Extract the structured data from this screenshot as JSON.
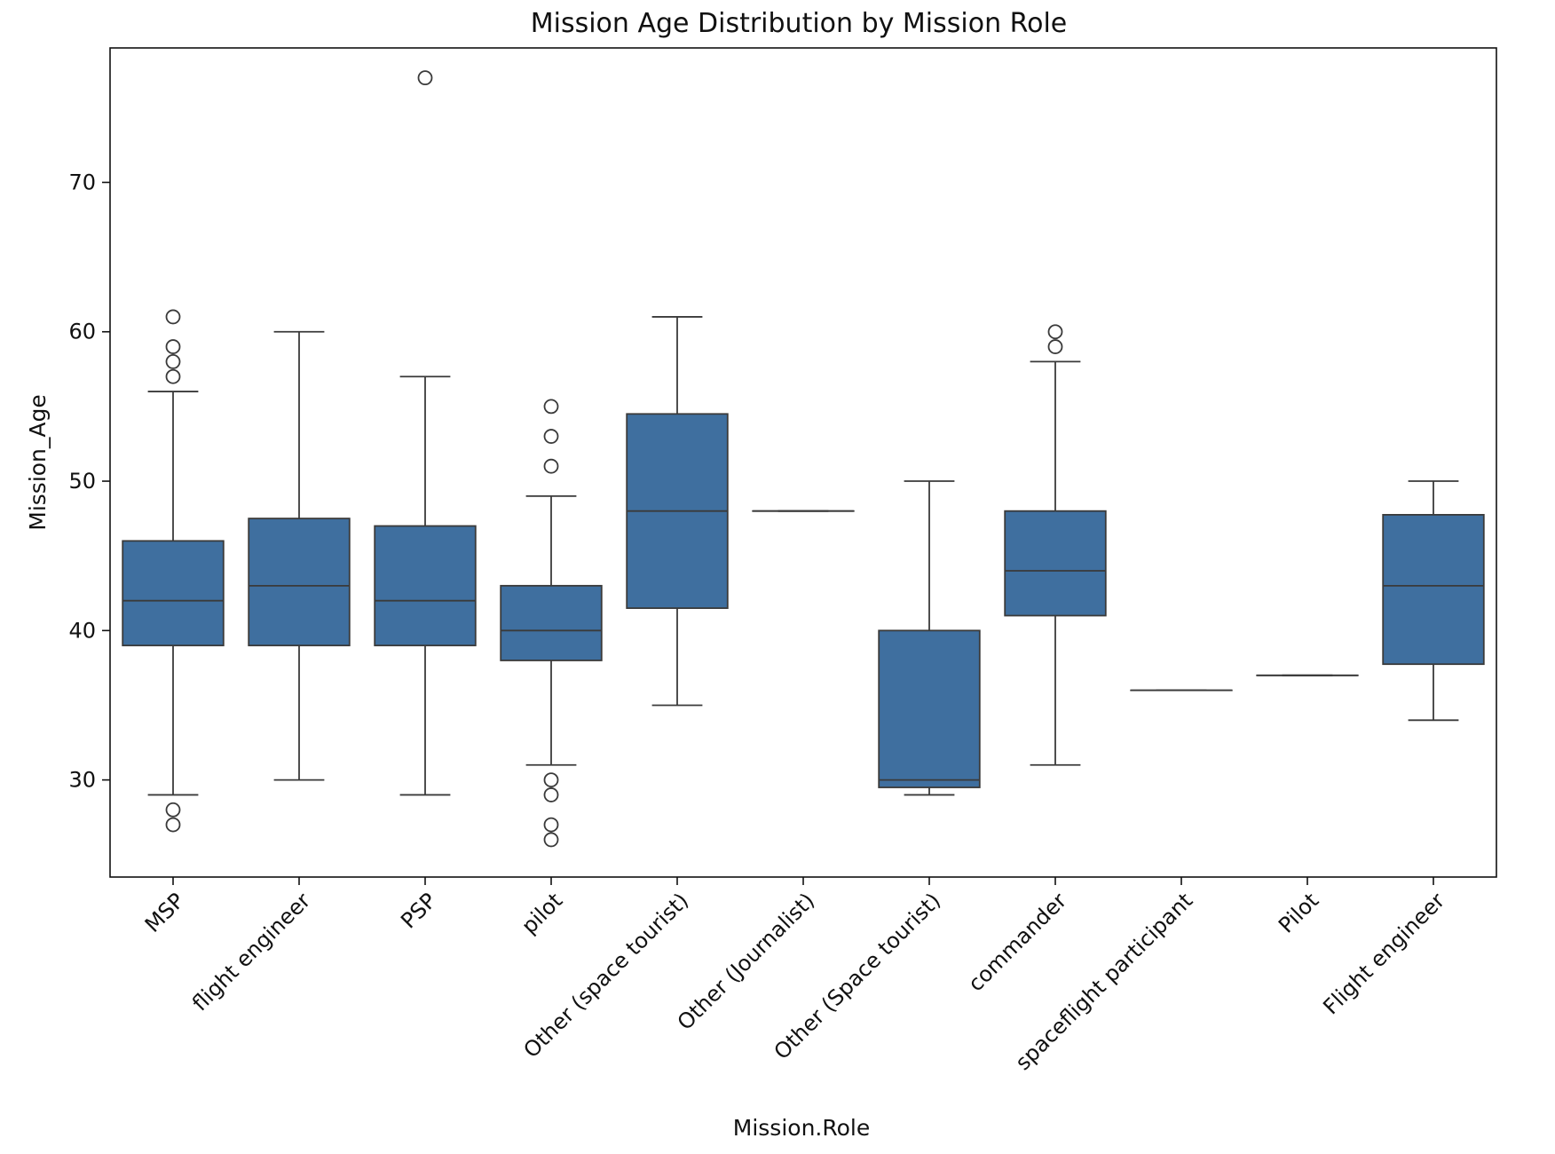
{
  "chart_data": {
    "type": "box",
    "title": "Mission Age Distribution by Mission Role",
    "xlabel": "Mission.Role",
    "ylabel": "Mission_Age",
    "ylim": [
      23.5,
      79
    ],
    "yticks": [
      30,
      40,
      50,
      60,
      70
    ],
    "grid": false,
    "box_color": "#3f6f9f",
    "line_color": "#3a3a3a",
    "categories": [
      "MSP",
      "flight engineer",
      "PSP",
      "pilot",
      "Other (space tourist)",
      "Other (Journalist)",
      "Other (Space tourist)",
      "commander",
      "spaceflight participant",
      "Pilot",
      "Flight engineer"
    ],
    "boxes": [
      {
        "category": "MSP",
        "whisker_low": 29,
        "q1": 39,
        "median": 42,
        "q3": 46,
        "whisker_high": 56,
        "outliers": [
          61,
          59,
          58,
          57,
          28,
          27
        ]
      },
      {
        "category": "flight engineer",
        "whisker_low": 30,
        "q1": 39,
        "median": 43,
        "q3": 47.5,
        "whisker_high": 60,
        "outliers": []
      },
      {
        "category": "PSP",
        "whisker_low": 29,
        "q1": 39,
        "median": 42,
        "q3": 47,
        "whisker_high": 57,
        "outliers": [
          77
        ]
      },
      {
        "category": "pilot",
        "whisker_low": 31,
        "q1": 38,
        "median": 40,
        "q3": 43,
        "whisker_high": 49,
        "outliers": [
          55,
          53,
          51,
          30,
          29,
          27,
          26
        ]
      },
      {
        "category": "Other (space tourist)",
        "whisker_low": 35,
        "q1": 41.5,
        "median": 48,
        "q3": 54.5,
        "whisker_high": 61,
        "outliers": []
      },
      {
        "category": "Other (Journalist)",
        "whisker_low": 48,
        "q1": 48,
        "median": 48,
        "q3": 48,
        "whisker_high": 48,
        "outliers": []
      },
      {
        "category": "Other (Space tourist)",
        "whisker_low": 29,
        "q1": 29.5,
        "median": 30,
        "q3": 40,
        "whisker_high": 50,
        "outliers": []
      },
      {
        "category": "commander",
        "whisker_low": 31,
        "q1": 41,
        "median": 44,
        "q3": 48,
        "whisker_high": 58,
        "outliers": [
          60,
          59
        ]
      },
      {
        "category": "spaceflight participant",
        "whisker_low": 36,
        "q1": 36,
        "median": 36,
        "q3": 36,
        "whisker_high": 36,
        "outliers": []
      },
      {
        "category": "Pilot",
        "whisker_low": 37,
        "q1": 37,
        "median": 37,
        "q3": 37,
        "whisker_high": 37,
        "outliers": []
      },
      {
        "category": "Flight engineer",
        "whisker_low": 34,
        "q1": 37.75,
        "median": 43,
        "q3": 47.75,
        "whisker_high": 50,
        "outliers": []
      }
    ]
  }
}
